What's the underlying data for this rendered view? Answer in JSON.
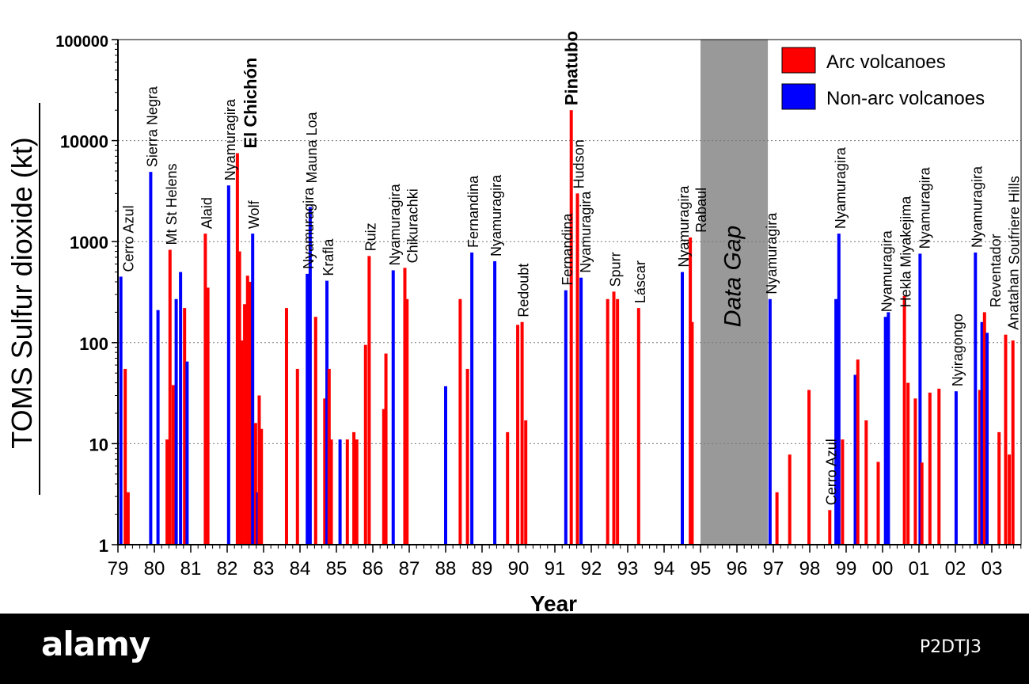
{
  "chart_data": {
    "type": "bar",
    "title": "",
    "xlabel": "Year",
    "ylabel": "TOMS Sulfur dioxide (kt)",
    "yscale": "log",
    "ylim": [
      1,
      100000
    ],
    "xlim": [
      1979,
      2003.9
    ],
    "grid": "horizontal dotted at decades",
    "legend_placement": "top-right",
    "x_tick_labels": [
      "79",
      "80",
      "81",
      "82",
      "83",
      "84",
      "85",
      "86",
      "87",
      "88",
      "89",
      "90",
      "91",
      "92",
      "93",
      "94",
      "95",
      "96",
      "97",
      "98",
      "99",
      "00",
      "01",
      "02",
      "03"
    ],
    "y_tick_labels": [
      "1",
      "10",
      "100",
      "1000",
      "10000",
      "100000"
    ],
    "colors": {
      "arc": "#ff0000",
      "nonarc": "#0000ff",
      "gap": "#999999"
    },
    "series": [
      {
        "name": "Arc volcanoes",
        "key": "arc"
      },
      {
        "name": "Non-arc volcanoes",
        "key": "nonarc"
      }
    ],
    "data_gap": {
      "label": "Data Gap",
      "start": 1995.0,
      "end": 1996.85
    },
    "bars": [
      {
        "year": 1979.08,
        "value": 450,
        "type": "nonarc",
        "label": "Cerro Azul"
      },
      {
        "year": 1979.2,
        "value": 55,
        "type": "arc"
      },
      {
        "year": 1979.28,
        "value": 3.3,
        "type": "arc"
      },
      {
        "year": 1979.9,
        "value": 4900,
        "type": "nonarc",
        "label": "Sierra Negra"
      },
      {
        "year": 1980.1,
        "value": 210,
        "type": "nonarc"
      },
      {
        "year": 1980.35,
        "value": 11,
        "type": "arc"
      },
      {
        "year": 1980.43,
        "value": 830,
        "type": "arc",
        "label": "Mt St Helens"
      },
      {
        "year": 1980.52,
        "value": 38,
        "type": "arc"
      },
      {
        "year": 1980.6,
        "value": 270,
        "type": "nonarc"
      },
      {
        "year": 1980.72,
        "value": 500,
        "type": "nonarc"
      },
      {
        "year": 1980.83,
        "value": 220,
        "type": "arc"
      },
      {
        "year": 1980.9,
        "value": 65,
        "type": "nonarc"
      },
      {
        "year": 1981.4,
        "value": 1200,
        "type": "arc",
        "label": "Alaid"
      },
      {
        "year": 1981.47,
        "value": 350,
        "type": "arc"
      },
      {
        "year": 1982.04,
        "value": 3600,
        "type": "nonarc",
        "label": "Nyamuragira"
      },
      {
        "year": 1982.28,
        "value": 7500,
        "type": "arc",
        "label": "El Chichón",
        "bold": true
      },
      {
        "year": 1982.34,
        "value": 800,
        "type": "arc"
      },
      {
        "year": 1982.4,
        "value": 105,
        "type": "arc"
      },
      {
        "year": 1982.48,
        "value": 240,
        "type": "arc"
      },
      {
        "year": 1982.56,
        "value": 460,
        "type": "arc"
      },
      {
        "year": 1982.63,
        "value": 400,
        "type": "arc"
      },
      {
        "year": 1982.7,
        "value": 1200,
        "type": "nonarc",
        "label": "Wolf"
      },
      {
        "year": 1982.78,
        "value": 16,
        "type": "arc"
      },
      {
        "year": 1982.84,
        "value": 3.3,
        "type": "nonarc"
      },
      {
        "year": 1982.88,
        "value": 30,
        "type": "arc"
      },
      {
        "year": 1982.94,
        "value": 14,
        "type": "arc"
      },
      {
        "year": 1983.63,
        "value": 220,
        "type": "arc"
      },
      {
        "year": 1983.93,
        "value": 55,
        "type": "arc"
      },
      {
        "year": 1984.2,
        "value": 480,
        "type": "nonarc",
        "label": "Nyamuragira"
      },
      {
        "year": 1984.28,
        "value": 2200,
        "type": "nonarc",
        "label": "Mauna Loa"
      },
      {
        "year": 1984.43,
        "value": 180,
        "type": "arc"
      },
      {
        "year": 1984.68,
        "value": 28,
        "type": "arc"
      },
      {
        "year": 1984.74,
        "value": 410,
        "type": "nonarc",
        "label": "Krafla"
      },
      {
        "year": 1984.8,
        "value": 55,
        "type": "arc"
      },
      {
        "year": 1984.86,
        "value": 11,
        "type": "arc"
      },
      {
        "year": 1985.1,
        "value": 11,
        "type": "nonarc"
      },
      {
        "year": 1985.3,
        "value": 11,
        "type": "arc"
      },
      {
        "year": 1985.48,
        "value": 13,
        "type": "arc"
      },
      {
        "year": 1985.56,
        "value": 11,
        "type": "arc"
      },
      {
        "year": 1985.8,
        "value": 95,
        "type": "arc"
      },
      {
        "year": 1985.9,
        "value": 720,
        "type": "arc",
        "label": "Ruiz"
      },
      {
        "year": 1986.3,
        "value": 22,
        "type": "arc"
      },
      {
        "year": 1986.36,
        "value": 78,
        "type": "arc"
      },
      {
        "year": 1986.56,
        "value": 520,
        "type": "nonarc",
        "label": "Nyamuragira"
      },
      {
        "year": 1986.88,
        "value": 550,
        "type": "arc",
        "label": "Chikurachki"
      },
      {
        "year": 1986.94,
        "value": 270,
        "type": "arc"
      },
      {
        "year": 1988.0,
        "value": 37,
        "type": "nonarc"
      },
      {
        "year": 1988.4,
        "value": 270,
        "type": "arc"
      },
      {
        "year": 1988.6,
        "value": 55,
        "type": "arc"
      },
      {
        "year": 1988.72,
        "value": 780,
        "type": "nonarc",
        "label": "Fernandina"
      },
      {
        "year": 1989.35,
        "value": 640,
        "type": "nonarc",
        "label": "Nyamuragira"
      },
      {
        "year": 1989.7,
        "value": 13,
        "type": "arc"
      },
      {
        "year": 1989.98,
        "value": 150,
        "type": "arc"
      },
      {
        "year": 1990.1,
        "value": 160,
        "type": "arc",
        "label": "Redoubt"
      },
      {
        "year": 1990.2,
        "value": 17,
        "type": "arc"
      },
      {
        "year": 1991.3,
        "value": 330,
        "type": "nonarc",
        "label": "Fernandina"
      },
      {
        "year": 1991.45,
        "value": 20000,
        "type": "arc",
        "label": "Pinatubo",
        "bold": true
      },
      {
        "year": 1991.62,
        "value": 3000,
        "type": "arc",
        "label": "Hudson"
      },
      {
        "year": 1991.72,
        "value": 440,
        "type": "nonarc",
        "label": "Nyamuragira"
      },
      {
        "year": 1992.45,
        "value": 270,
        "type": "arc"
      },
      {
        "year": 1992.62,
        "value": 320,
        "type": "arc",
        "label": "Spurr"
      },
      {
        "year": 1992.72,
        "value": 270,
        "type": "arc"
      },
      {
        "year": 1993.3,
        "value": 220,
        "type": "arc",
        "label": "Láscar"
      },
      {
        "year": 1994.5,
        "value": 500,
        "type": "nonarc",
        "label": "Nyamuragira"
      },
      {
        "year": 1994.72,
        "value": 1100,
        "type": "arc",
        "label": "Rabaul"
      },
      {
        "year": 1994.77,
        "value": 160,
        "type": "arc"
      },
      {
        "year": 1996.91,
        "value": 270,
        "type": "nonarc",
        "label": "Nyamuragira"
      },
      {
        "year": 1997.1,
        "value": 3.3,
        "type": "arc"
      },
      {
        "year": 1997.45,
        "value": 7.8,
        "type": "arc"
      },
      {
        "year": 1997.98,
        "value": 34,
        "type": "arc"
      },
      {
        "year": 1998.55,
        "value": 2.2,
        "type": "arc",
        "label": "Cerro Azul"
      },
      {
        "year": 1998.72,
        "value": 270,
        "type": "nonarc"
      },
      {
        "year": 1998.8,
        "value": 1200,
        "type": "nonarc",
        "label": "Nyamuragira"
      },
      {
        "year": 1998.9,
        "value": 11,
        "type": "arc"
      },
      {
        "year": 1999.25,
        "value": 48,
        "type": "nonarc"
      },
      {
        "year": 1999.32,
        "value": 68,
        "type": "arc"
      },
      {
        "year": 1999.55,
        "value": 17,
        "type": "arc"
      },
      {
        "year": 1999.88,
        "value": 6.6,
        "type": "arc"
      },
      {
        "year": 2000.08,
        "value": 180,
        "type": "nonarc",
        "label": "Nyamuragira"
      },
      {
        "year": 2000.16,
        "value": 200,
        "type": "nonarc",
        "label": "Hekla"
      },
      {
        "year": 2000.6,
        "value": 290,
        "type": "arc",
        "label": "Miyakejima"
      },
      {
        "year": 2000.7,
        "value": 40,
        "type": "arc"
      },
      {
        "year": 2000.9,
        "value": 28,
        "type": "arc"
      },
      {
        "year": 2001.03,
        "value": 760,
        "type": "nonarc",
        "label": "Nyamuragira"
      },
      {
        "year": 2001.08,
        "value": 6.5,
        "type": "arc"
      },
      {
        "year": 2001.3,
        "value": 32,
        "type": "arc"
      },
      {
        "year": 2001.55,
        "value": 35,
        "type": "arc"
      },
      {
        "year": 2002.02,
        "value": 33,
        "type": "nonarc",
        "label": "Nyiragongo"
      },
      {
        "year": 2002.55,
        "value": 780,
        "type": "nonarc",
        "label": "Nyamuragira"
      },
      {
        "year": 2002.67,
        "value": 34,
        "type": "arc"
      },
      {
        "year": 2002.73,
        "value": 160,
        "type": "nonarc"
      },
      {
        "year": 2002.8,
        "value": 200,
        "type": "arc",
        "label": "Reventador"
      },
      {
        "year": 2002.87,
        "value": 125,
        "type": "nonarc"
      },
      {
        "year": 2003.2,
        "value": 13,
        "type": "arc"
      },
      {
        "year": 2003.38,
        "value": 120,
        "type": "arc",
        "label": "Anatahan"
      },
      {
        "year": 2003.48,
        "value": 7.8,
        "type": "arc"
      },
      {
        "year": 2003.58,
        "value": 105,
        "type": "arc",
        "label": "Soufriere Hills"
      }
    ]
  },
  "footer": {
    "logo": "alamy",
    "code": "P2DTJ3"
  }
}
